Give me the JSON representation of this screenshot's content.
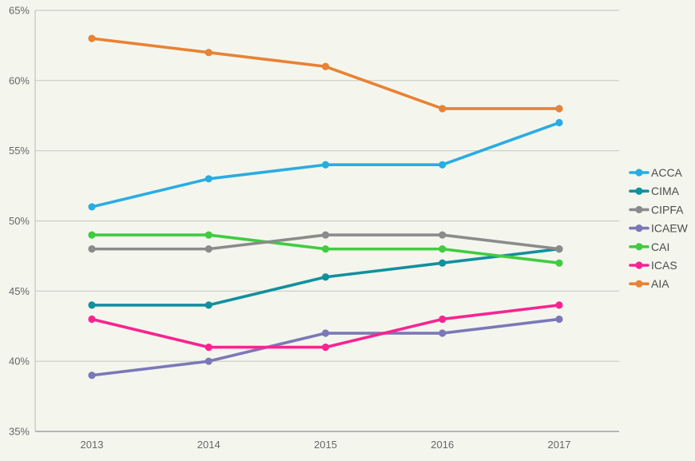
{
  "chart_data": {
    "type": "line",
    "title": "",
    "xlabel": "",
    "ylabel": "",
    "unit": "%",
    "categories": [
      "2013",
      "2014",
      "2015",
      "2016",
      "2017"
    ],
    "series": [
      {
        "name": "ACCA",
        "color": "#2aace2",
        "values": [
          51,
          53,
          54,
          54,
          57
        ]
      },
      {
        "name": "CIMA",
        "color": "#11909e",
        "values": [
          44,
          44,
          46,
          47,
          48
        ]
      },
      {
        "name": "CIPFA",
        "color": "#8b8b8b",
        "values": [
          48,
          48,
          49,
          49,
          48
        ]
      },
      {
        "name": "ICAEW",
        "color": "#7b78b8",
        "values": [
          39,
          40,
          42,
          42,
          43
        ]
      },
      {
        "name": "CAI",
        "color": "#40cc40",
        "values": [
          49,
          49,
          48,
          48,
          47
        ]
      },
      {
        "name": "ICAS",
        "color": "#fa2390",
        "values": [
          43,
          41,
          41,
          43,
          44
        ]
      },
      {
        "name": "AIA",
        "color": "#e88234",
        "values": [
          63,
          62,
          61,
          58,
          58
        ]
      }
    ],
    "ylim": [
      35,
      65
    ],
    "ytick_step": 5,
    "ytick_labels": [
      "65%",
      "60%",
      "55%",
      "50%",
      "45%",
      "40%",
      "35%"
    ],
    "grid": "horizontal",
    "legend_position": "right",
    "legend_order": [
      "ACCA",
      "CIMA",
      "CIPFA",
      "ICAEW",
      "CAI",
      "ICAS",
      "AIA"
    ]
  },
  "colors": {
    "background": "#f4f6ee",
    "gridline": "#cacbc4",
    "axis_line": "#9f9f9f",
    "plot_border": "#c3c4bd",
    "tick_text": "#666666",
    "legend_text": "#4c4c4c"
  }
}
